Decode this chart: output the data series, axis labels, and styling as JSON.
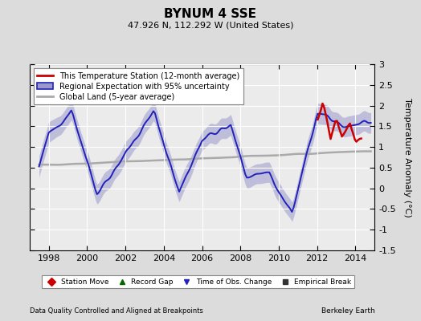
{
  "title": "BYNUM 4 SSE",
  "subtitle": "47.926 N, 112.292 W (United States)",
  "ylabel": "Temperature Anomaly (°C)",
  "xlabel_left": "Data Quality Controlled and Aligned at Breakpoints",
  "xlabel_right": "Berkeley Earth",
  "ylim": [
    -1.5,
    3.0
  ],
  "xlim": [
    1997.0,
    2015.0
  ],
  "yticks": [
    -1.5,
    -1.0,
    -0.5,
    0.0,
    0.5,
    1.0,
    1.5,
    2.0,
    2.5,
    3.0
  ],
  "xticks": [
    1998,
    2000,
    2002,
    2004,
    2006,
    2008,
    2010,
    2012,
    2014
  ],
  "bg_color": "#dcdcdc",
  "plot_bg_color": "#ebebeb",
  "regional_color": "#2222bb",
  "regional_fill_color": "#9999cc",
  "station_color": "#cc0000",
  "global_color": "#aaaaaa",
  "legend_items": [
    {
      "label": "This Temperature Station (12-month average)",
      "color": "#cc0000",
      "lw": 2
    },
    {
      "label": "Regional Expectation with 95% uncertainty",
      "color": "#2222bb",
      "lw": 2
    },
    {
      "label": "Global Land (5-year average)",
      "color": "#aaaaaa",
      "lw": 2
    }
  ],
  "bottom_legend": [
    {
      "label": "Station Move",
      "color": "#cc0000",
      "marker": "D"
    },
    {
      "label": "Record Gap",
      "color": "#006600",
      "marker": "^"
    },
    {
      "label": "Time of Obs. Change",
      "color": "#2222bb",
      "marker": "v"
    },
    {
      "label": "Empirical Break",
      "color": "#333333",
      "marker": "s"
    }
  ]
}
